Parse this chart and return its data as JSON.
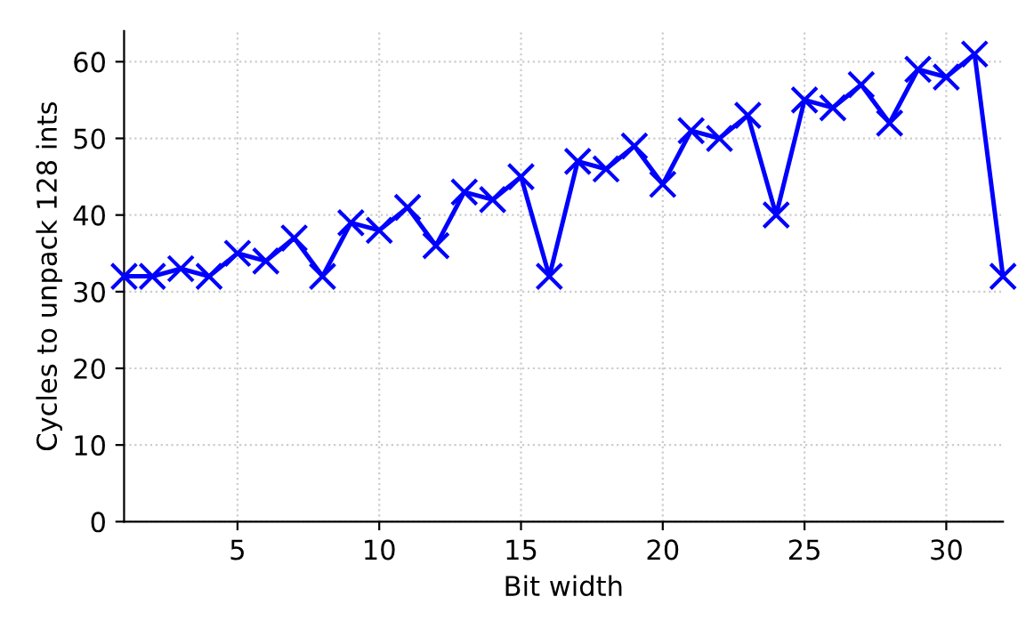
{
  "chart_data": {
    "type": "line",
    "xlabel": "Bit width",
    "ylabel": "Cycles to unpack 128 ints",
    "x": [
      1,
      2,
      3,
      4,
      5,
      6,
      7,
      8,
      9,
      10,
      11,
      12,
      13,
      14,
      15,
      16,
      17,
      18,
      19,
      20,
      21,
      22,
      23,
      24,
      25,
      26,
      27,
      28,
      29,
      30,
      31,
      32
    ],
    "series": [
      {
        "color": "#0000ff",
        "values": [
          32,
          32,
          33,
          32,
          35,
          34,
          37,
          32,
          39,
          38,
          41,
          36,
          43,
          42,
          45,
          32,
          47,
          46,
          49,
          44,
          51,
          50,
          53,
          40,
          55,
          54,
          57,
          52,
          59,
          58,
          61,
          32
        ]
      }
    ],
    "xlim": [
      1,
      32
    ],
    "ylim": [
      0,
      64
    ],
    "xticks": [
      5,
      10,
      15,
      20,
      25,
      30
    ],
    "yticks": [
      0,
      10,
      20,
      30,
      40,
      50,
      60
    ],
    "grid": true,
    "marker": "cross",
    "line_style": "solid",
    "legend": false
  }
}
